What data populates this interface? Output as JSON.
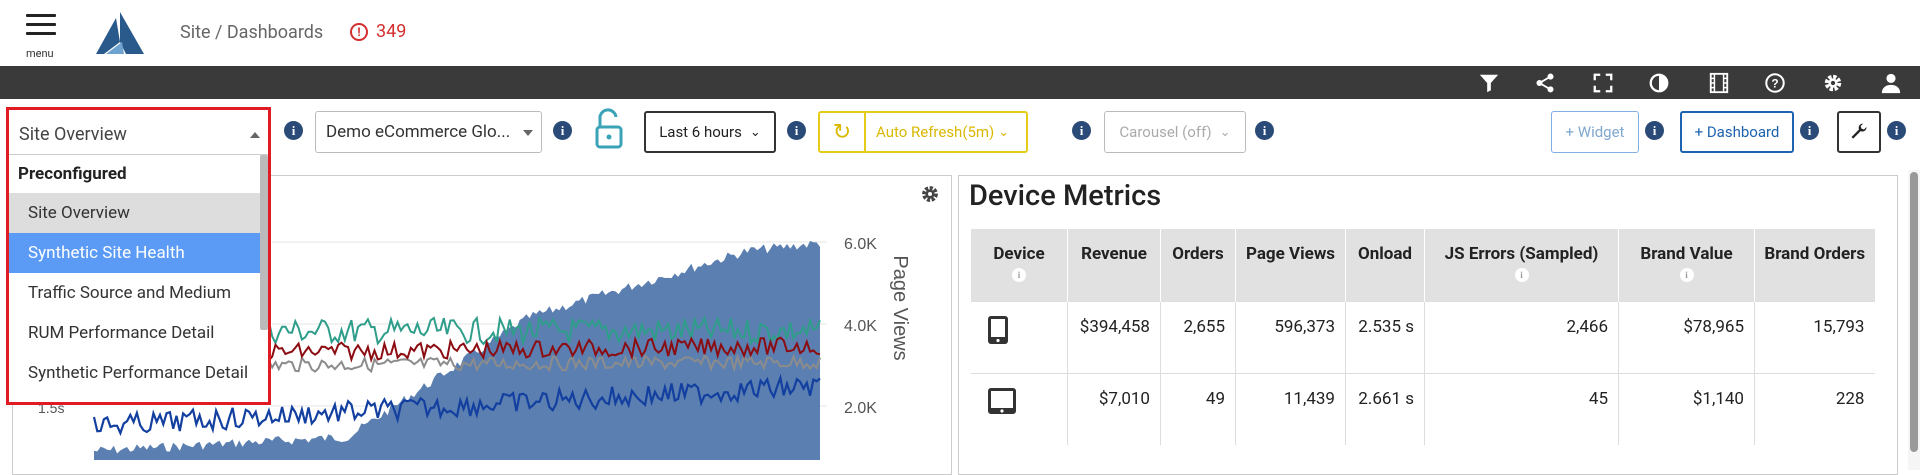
{
  "header": {
    "menu_label": "menu",
    "breadcrumb": "Site / Dashboards",
    "alert_count": "349"
  },
  "darkbar": {
    "icons": [
      "filter-icon",
      "share-icon",
      "fullscreen-icon",
      "contrast-icon",
      "film-icon",
      "help-icon",
      "gear-icon",
      "user-icon"
    ]
  },
  "toolbar": {
    "dashboard_select": "Site Overview",
    "app_select": "Demo eCommerce Glo...",
    "time_range": "Last 6 hours",
    "auto_refresh": "Auto Refresh(5m)",
    "carousel": "Carousel (off)",
    "add_widget": "+ Widget",
    "add_dashboard": "+ Dashboard"
  },
  "dropdown": {
    "current": "Site Overview",
    "group": "Preconfigured",
    "items": [
      {
        "label": "Site Overview",
        "state": "selected"
      },
      {
        "label": "Synthetic Site Health",
        "state": "highlighted"
      },
      {
        "label": "Traffic Source and Medium",
        "state": ""
      },
      {
        "label": "RUM Performance Detail",
        "state": ""
      },
      {
        "label": "Synthetic Performance Detail",
        "state": ""
      }
    ]
  },
  "chart": {
    "right_axis_label": "Page Views",
    "right_ticks": [
      "6.0K",
      "4.0K",
      "2.0K"
    ],
    "left_tick": "1.5s",
    "colors": {
      "area": "#5b7fb0",
      "teal": "#2e9d8a",
      "red": "#8b0d12",
      "gray": "#8c8c8c",
      "blue": "#1340a0"
    }
  },
  "device_metrics": {
    "title": "Device Metrics",
    "columns": [
      "Device",
      "Revenue",
      "Orders",
      "Page Views",
      "Onload",
      "JS Errors (Sampled)",
      "Brand Value",
      "Brand Orders"
    ],
    "rows": [
      {
        "device_icon": "phone-icon",
        "revenue": "$394,458",
        "orders": "2,655",
        "page_views": "596,373",
        "onload": "2.535 s",
        "js_errors": "2,466",
        "brand_value": "$78,965",
        "brand_orders": "15,793"
      },
      {
        "device_icon": "tablet-icon",
        "revenue": "$7,010",
        "orders": "49",
        "page_views": "11,439",
        "onload": "2.661 s",
        "js_errors": "45",
        "brand_value": "$1,140",
        "brand_orders": "228"
      }
    ]
  }
}
